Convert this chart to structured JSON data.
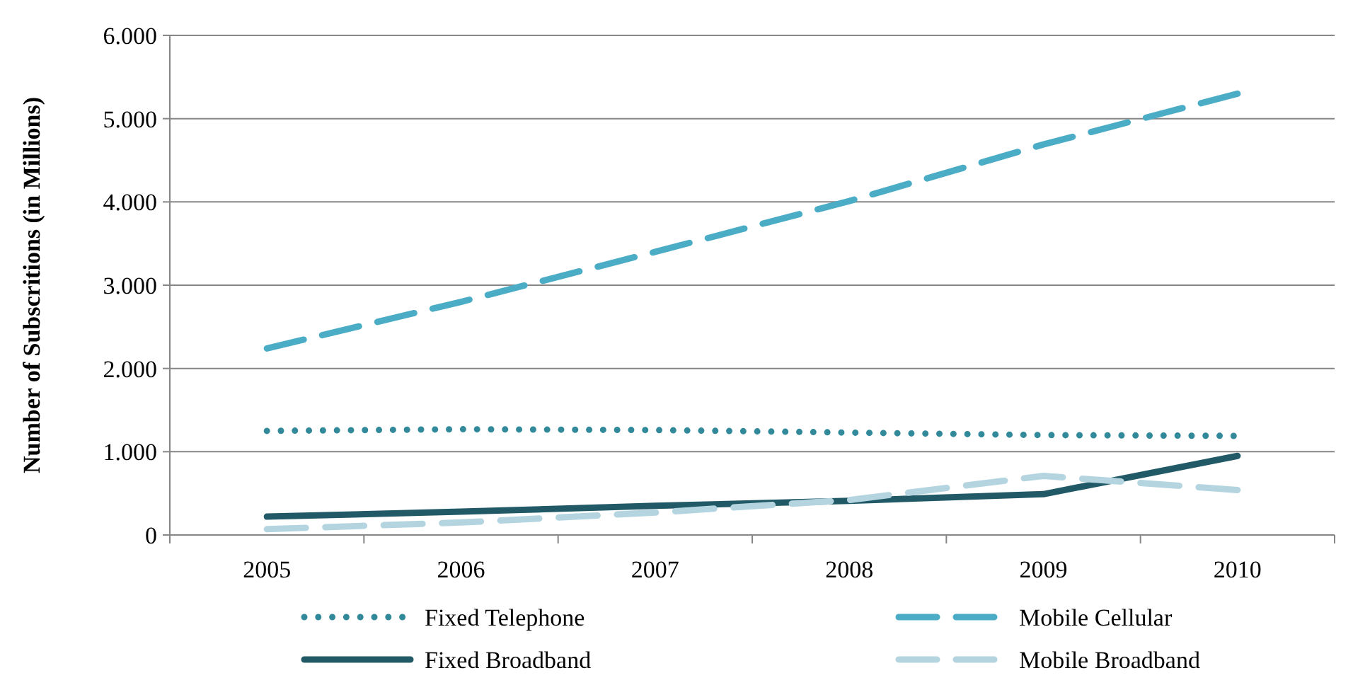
{
  "chart_data": {
    "type": "line",
    "ylabel": "Number of Subscritions (in Millions)",
    "categories": [
      "2005",
      "2006",
      "2007",
      "2008",
      "2009",
      "2010"
    ],
    "series": [
      {
        "name": "Fixed Telephone",
        "color": "#31899a",
        "line_style": "dotted",
        "values": [
          1250,
          1270,
          1260,
          1230,
          1200,
          1190
        ]
      },
      {
        "name": "Mobile Cellular",
        "color": "#4bacc6",
        "line_style": "dashed",
        "values": [
          2240,
          2800,
          3400,
          4010,
          4690,
          5300
        ]
      },
      {
        "name": "Fixed Broadband",
        "color": "#215a66",
        "line_style": "solid",
        "values": [
          220,
          280,
          350,
          410,
          490,
          950
        ]
      },
      {
        "name": "Mobile Broadband",
        "color": "#b4d5e0",
        "line_style": "dashed",
        "values": [
          70,
          150,
          270,
          420,
          710,
          540
        ]
      }
    ],
    "ylim": [
      0,
      6000
    ],
    "yticks": [
      {
        "value": 0,
        "label": "0"
      },
      {
        "value": 1000,
        "label": "1.000"
      },
      {
        "value": 2000,
        "label": "2.000"
      },
      {
        "value": 3000,
        "label": "3.000"
      },
      {
        "value": 4000,
        "label": "4.000"
      },
      {
        "value": 5000,
        "label": "5.000"
      },
      {
        "value": 6000,
        "label": "6.000"
      }
    ],
    "grid": "y",
    "legend": "bottom",
    "marker": "none"
  }
}
